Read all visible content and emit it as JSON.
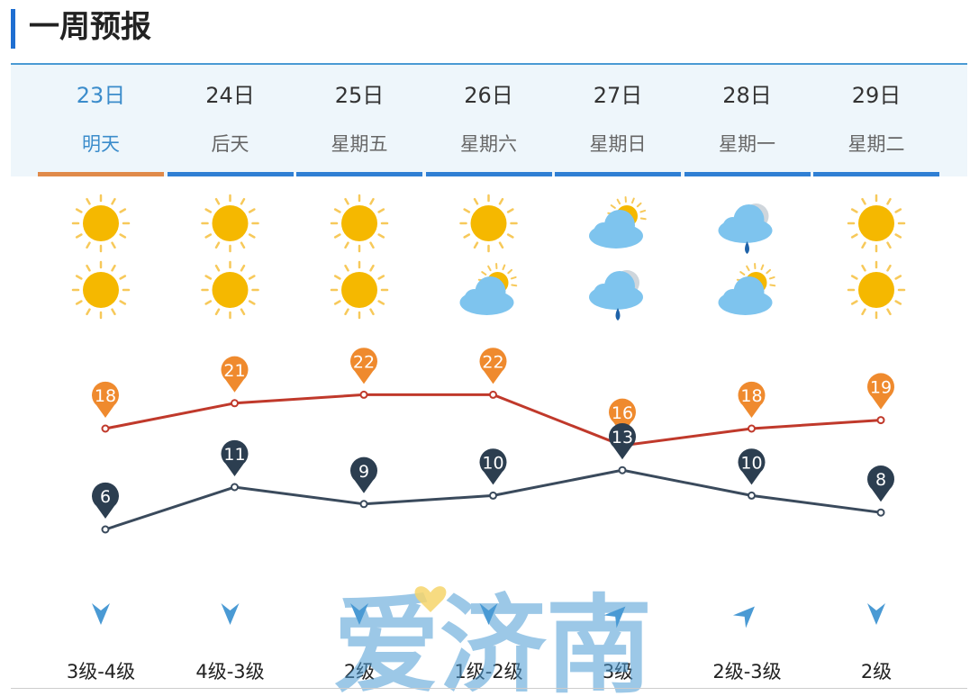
{
  "section_title": "一周预报",
  "days": [
    {
      "date": "23日",
      "label": "明天",
      "day_icon": "sun",
      "night_icon": "sun",
      "high": 18,
      "low": 6,
      "wind_dir": "south",
      "wind": "3级-4级"
    },
    {
      "date": "24日",
      "label": "后天",
      "day_icon": "sun",
      "night_icon": "sun",
      "high": 21,
      "low": 11,
      "wind_dir": "south",
      "wind": "4级-3级"
    },
    {
      "date": "25日",
      "label": "星期五",
      "day_icon": "sun",
      "night_icon": "sun",
      "high": 22,
      "low": 9,
      "wind_dir": "south",
      "wind": "2级"
    },
    {
      "date": "26日",
      "label": "星期六",
      "day_icon": "sun",
      "night_icon": "partly-cloudy",
      "high": 22,
      "low": 10,
      "wind_dir": "south",
      "wind": "1级-2级"
    },
    {
      "date": "27日",
      "label": "星期日",
      "day_icon": "partly-cloudy",
      "night_icon": "rain",
      "high": 16,
      "low": 13,
      "wind_dir": "northeast",
      "wind": "3级"
    },
    {
      "date": "28日",
      "label": "星期一",
      "day_icon": "rain",
      "night_icon": "partly-cloudy",
      "high": 18,
      "low": 10,
      "wind_dir": "northeast",
      "wind": "2级-3级"
    },
    {
      "date": "29日",
      "label": "星期二",
      "day_icon": "sun",
      "night_icon": "sun",
      "high": 19,
      "low": 8,
      "wind_dir": "south",
      "wind": "2级"
    }
  ],
  "chart_data": {
    "type": "line",
    "x": [
      "23日",
      "24日",
      "25日",
      "26日",
      "27日",
      "28日",
      "29日"
    ],
    "series": [
      {
        "values": [
          18,
          21,
          22,
          22,
          16,
          18,
          19
        ],
        "color": "#c0392b",
        "marker_color": "#ef8a2e"
      },
      {
        "values": [
          6,
          11,
          9,
          10,
          13,
          10,
          8
        ],
        "color": "#3a4a5c",
        "marker_color": "#2c3e50"
      }
    ]
  },
  "watermark": "爱济南",
  "colors": {
    "accent": "#1f6fd1",
    "active_tab": "#e08a4a",
    "tab": "#2f7fd4",
    "sun": "#f5b800",
    "cloud": "#7ec4ee"
  }
}
